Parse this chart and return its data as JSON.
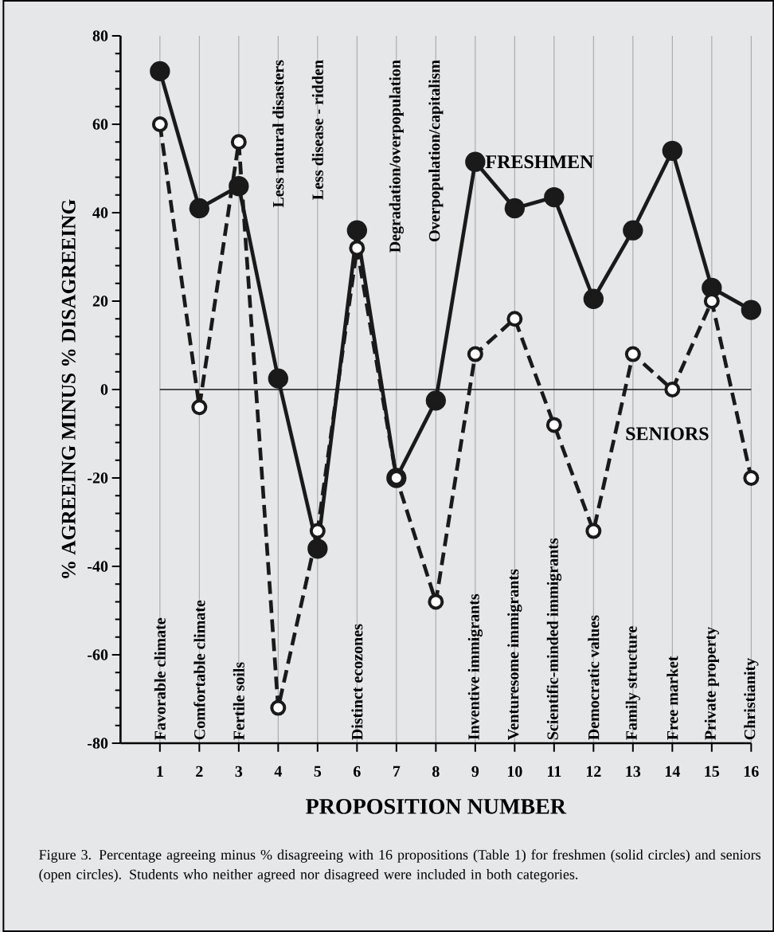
{
  "chart_data": {
    "type": "line",
    "xlabel": "PROPOSITION NUMBER",
    "ylabel": "% AGREEING MINUS % DISAGREEING",
    "x": [
      1,
      2,
      3,
      4,
      5,
      6,
      7,
      8,
      9,
      10,
      11,
      12,
      13,
      14,
      15,
      16
    ],
    "series": [
      {
        "name": "FRESHMEN",
        "color": "#1a1a1a",
        "line_style": "solid",
        "marker": "circle",
        "values": [
          72,
          41,
          46,
          2.5,
          -36,
          36,
          -20,
          -2.5,
          51.5,
          41,
          43.5,
          20.5,
          36,
          54,
          23,
          18
        ]
      },
      {
        "name": "SENIORS",
        "color": "#1a1a1a",
        "line_style": "dashed",
        "marker": "circle",
        "values": [
          60,
          -4,
          56,
          -72,
          -32,
          32,
          -20,
          -48,
          8,
          16,
          -8,
          -32,
          8,
          0,
          20,
          -20
        ]
      }
    ],
    "xlim": [
      0,
      16
    ],
    "xticks": [
      1,
      2,
      3,
      4,
      5,
      6,
      7,
      8,
      9,
      10,
      11,
      12,
      13,
      14,
      15,
      16
    ],
    "ylim": [
      -80,
      80
    ],
    "yticks": [
      -80,
      -60,
      -40,
      -20,
      0,
      20,
      40,
      60,
      80
    ],
    "grid": "x",
    "ref_lines": [
      {
        "axis": "y",
        "value": 0,
        "color": "#1a1a1a"
      }
    ],
    "annotations": [
      "Favorable climate",
      "Comfortable climate",
      "Fertile soils",
      "Less natural disasters",
      "Less disease - ridden",
      "Distinct ecozones",
      "Degradation/overpopulation",
      "Overpopulation/capitalism",
      "Inventive immigrants",
      "Venturesome immigrants",
      "Scientific-minded immigrants",
      "Democratic values",
      "Family structure",
      "Free market",
      "Private property",
      "Christianity",
      "Figure 3. Percentage agreeing minus % disagreeing with 16 propositions (Table 1) for freshmen (solid circles) and seniors (open circles). Students who neither agreed nor disagreed were included in both categories."
    ]
  }
}
